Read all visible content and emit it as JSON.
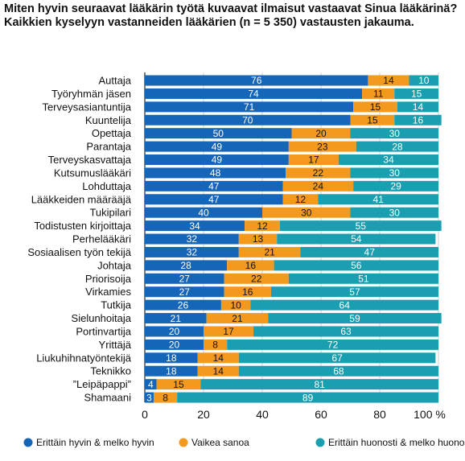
{
  "title": "Miten hyvin seuraavat lääkärin työtä kuvaavat ilmaisut vastaavat Sinua lääkärinä? Kaikkien kyselyyn vastanneiden lääkärien (n = 5 350) vastausten jakauma.",
  "chart_data": {
    "type": "bar",
    "orientation": "horizontal",
    "stacked": true,
    "title": "Miten hyvin seuraavat lääkärin työtä kuvaavat ilmaisut vastaavat Sinua lääkärinä? Kaikkien kyselyyn vastanneiden lääkärien (n = 5 350) vastausten jakauma.",
    "categories": [
      "Auttaja",
      "Työryhmän jäsen",
      "Terveysasiantuntija",
      "Kuuntelija",
      "Opettaja",
      "Parantaja",
      "Terveyskasvattaja",
      "Kutsumuslääkäri",
      "Lohduttaja",
      "Lääkkeiden määrääjä",
      "Tukipilari",
      "Todistusten kirjoittaja",
      "Perhelääkäri",
      "Sosiaalisen työn tekijä",
      "Johtaja",
      "Priorisoija",
      "Virkamies",
      "Tutkija",
      "Sielunhoitaja",
      "Portinvartija",
      "Yrittäjä",
      "Liukuhihnatyöntekijä",
      "Teknikko",
      "”Leipäpappi”",
      "Shamaani"
    ],
    "series": [
      {
        "name": "Erittäin hyvin & melko hyvin",
        "color": "#1565b8",
        "values": [
          76,
          74,
          71,
          70,
          50,
          49,
          49,
          48,
          47,
          47,
          40,
          34,
          32,
          32,
          28,
          27,
          27,
          26,
          21,
          20,
          20,
          18,
          18,
          4,
          3
        ]
      },
      {
        "name": "Vaikea sanoa",
        "color": "#f39a1e",
        "values": [
          14,
          11,
          15,
          15,
          20,
          23,
          17,
          22,
          24,
          12,
          30,
          12,
          13,
          21,
          16,
          22,
          16,
          10,
          21,
          17,
          8,
          14,
          14,
          15,
          8
        ]
      },
      {
        "name": "Erittäin huonosti & melko huonosti",
        "color": "#1a9fb0",
        "values": [
          10,
          15,
          14,
          16,
          30,
          28,
          34,
          30,
          29,
          41,
          30,
          55,
          54,
          47,
          56,
          51,
          57,
          64,
          59,
          63,
          72,
          67,
          68,
          81,
          89
        ]
      }
    ],
    "xlim": [
      0,
      100
    ],
    "xticks": [
      "0",
      "20",
      "40",
      "60",
      "80",
      "100 %"
    ],
    "legend_position": "bottom",
    "grid": true
  }
}
